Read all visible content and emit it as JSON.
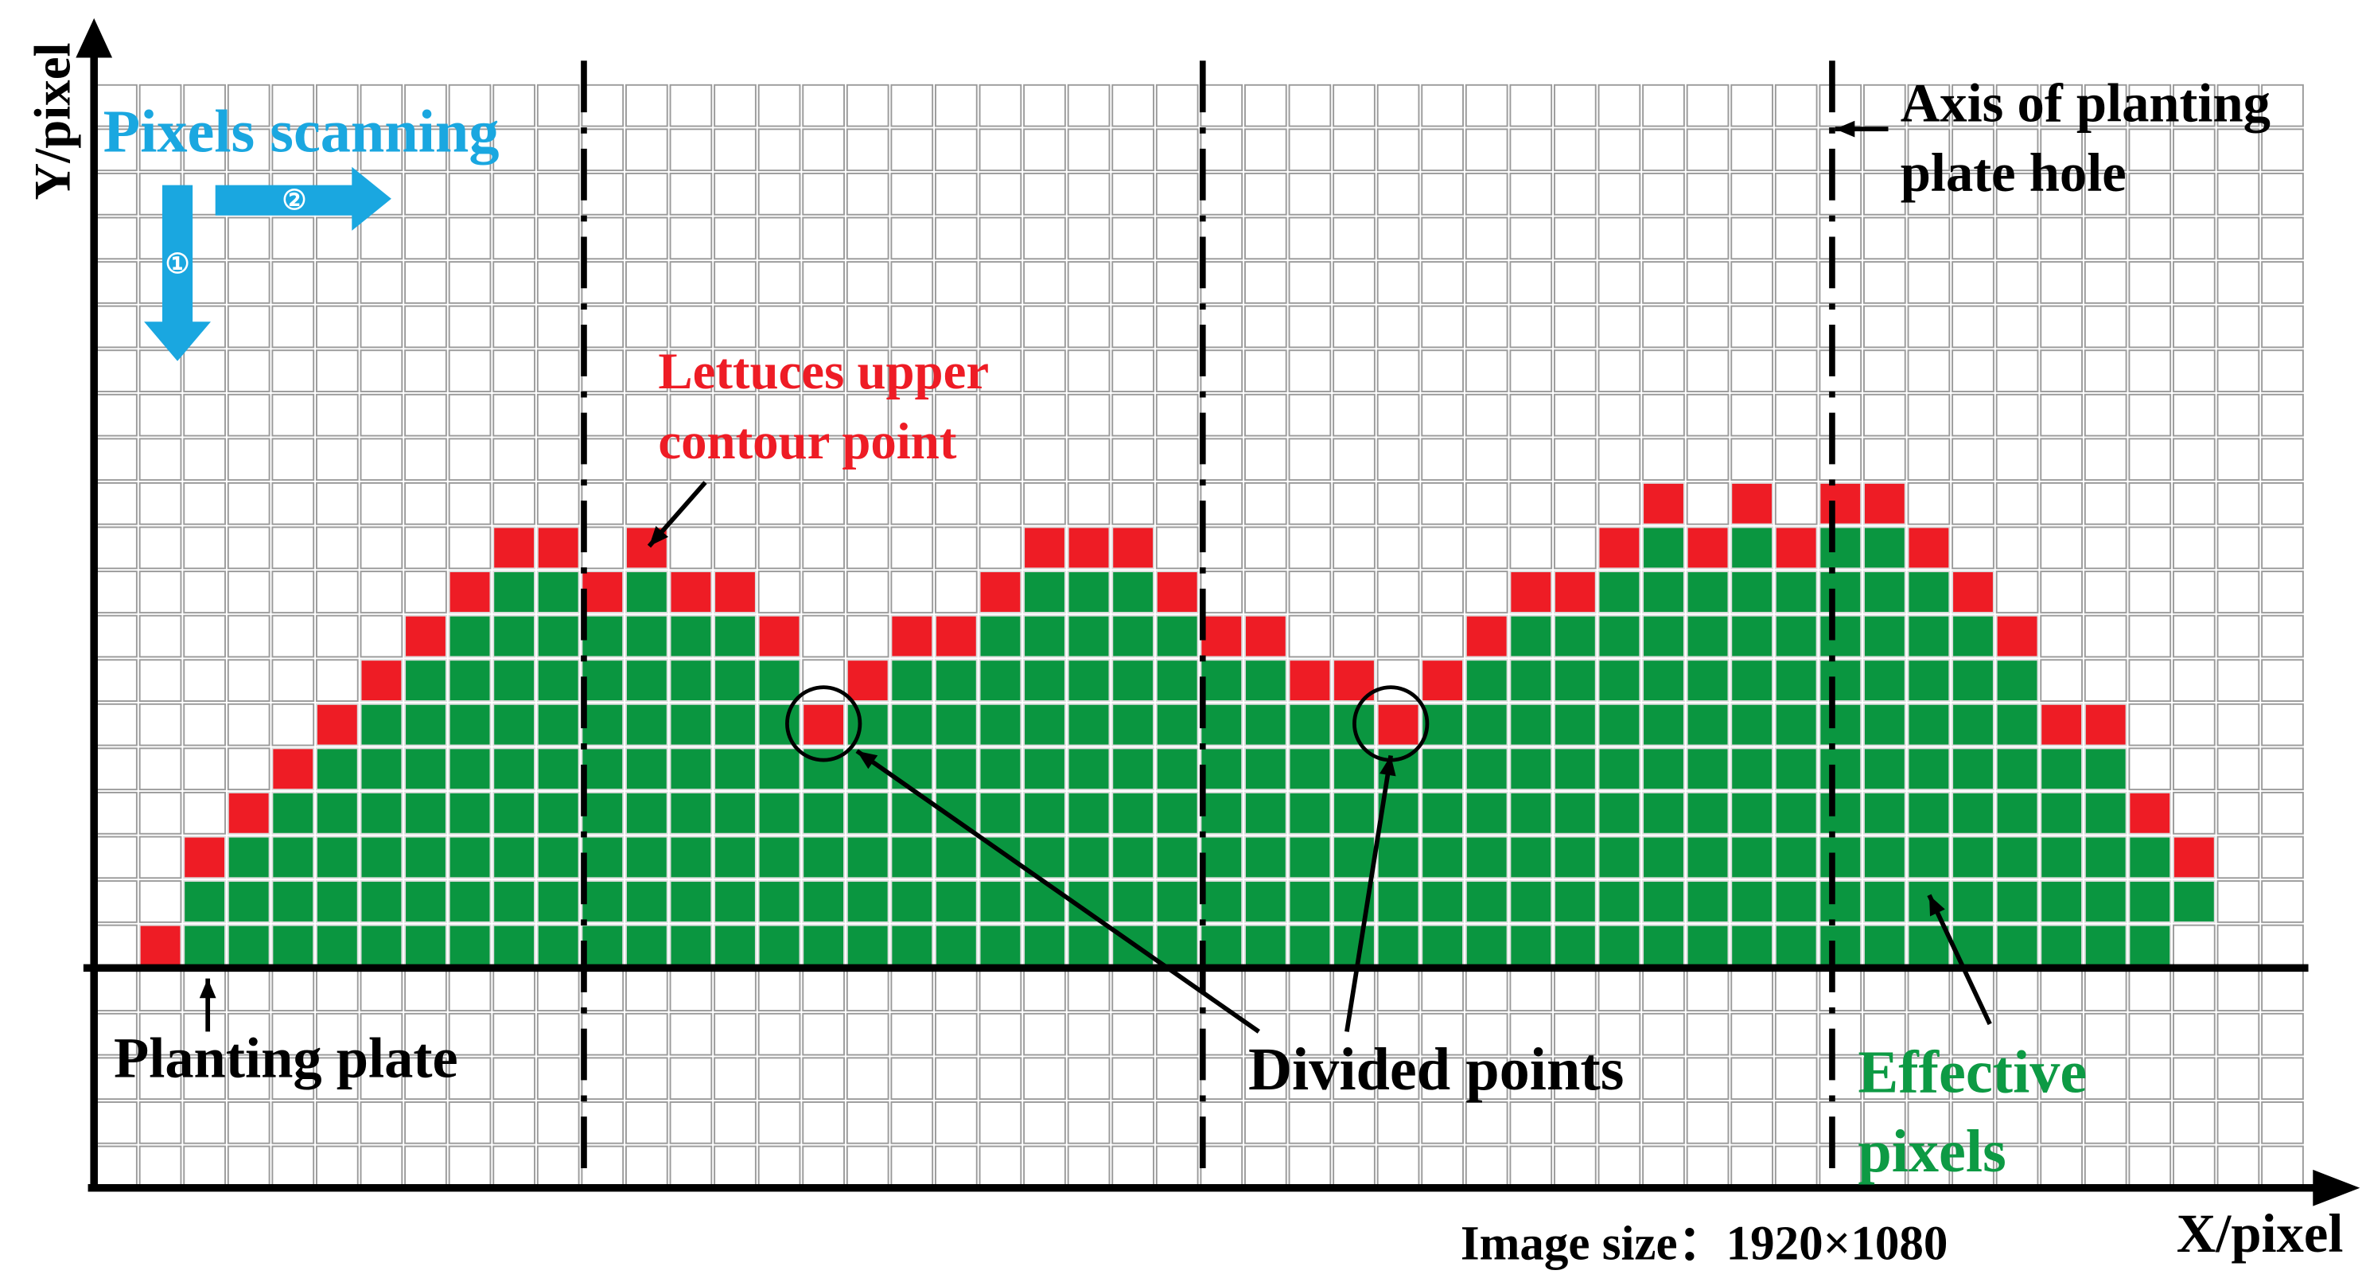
{
  "axes": {
    "y_label": "Y/pixel",
    "x_label": "X/pixel"
  },
  "scanning": {
    "title": "Pixels scanning",
    "step_1": "①",
    "step_2": "②"
  },
  "labels": {
    "axis_hole": [
      "Axis of planting",
      "plate hole"
    ],
    "contour": [
      "Lettuces upper",
      "contour point"
    ],
    "plate": "Planting plate",
    "divided": "Divided points",
    "effective": [
      "Effective",
      "pixels"
    ],
    "image_size": "Image size：1920×1080"
  }
}
